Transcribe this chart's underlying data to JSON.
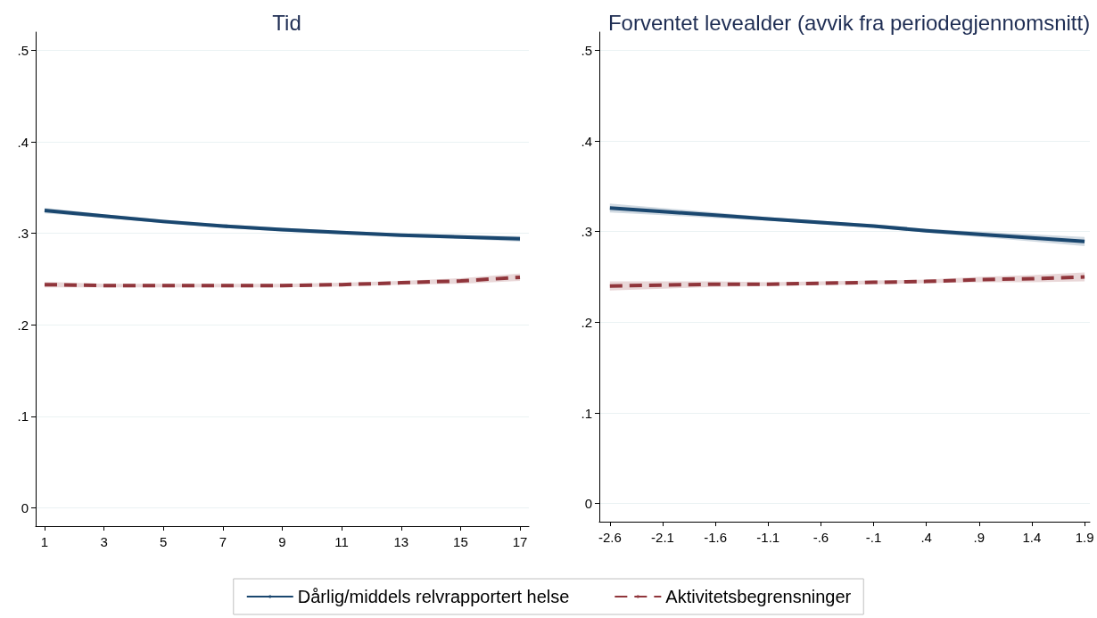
{
  "chart_data": [
    {
      "type": "line",
      "title": "Tid",
      "x": [
        1,
        3,
        5,
        7,
        9,
        11,
        13,
        15,
        17
      ],
      "xlim": [
        0.7,
        17.3
      ],
      "xticks": [
        1,
        3,
        5,
        7,
        9,
        11,
        13,
        15,
        17
      ],
      "ylim": [
        -0.02,
        0.52
      ],
      "yticks": [
        {
          "value": 0,
          "label": "0"
        },
        {
          "value": 0.1,
          "label": ".1"
        },
        {
          "value": 0.2,
          "label": ".2"
        },
        {
          "value": 0.3,
          "label": ".3"
        },
        {
          "value": 0.4,
          "label": ".4"
        },
        {
          "value": 0.5,
          "label": ".5"
        }
      ],
      "grid": "y",
      "legend": "bottom",
      "marker": "none",
      "series": [
        {
          "name": "Dårlig/middels relvrapportert helse",
          "color": "#1a476f",
          "line_style": "solid",
          "values": [
            0.325,
            0.319,
            0.313,
            0.308,
            0.304,
            0.301,
            0.298,
            0.296,
            0.294
          ],
          "lower": [
            0.322,
            0.317,
            0.311,
            0.306,
            0.302,
            0.299,
            0.296,
            0.294,
            0.291
          ],
          "upper": [
            0.328,
            0.321,
            0.315,
            0.31,
            0.306,
            0.303,
            0.3,
            0.298,
            0.297
          ]
        },
        {
          "name": "Aktivitetsbegrensninger",
          "color": "#90353b",
          "line_style": "dashed",
          "values": [
            0.244,
            0.243,
            0.243,
            0.243,
            0.243,
            0.244,
            0.246,
            0.248,
            0.252
          ],
          "lower": [
            0.241,
            0.241,
            0.241,
            0.241,
            0.241,
            0.242,
            0.244,
            0.245,
            0.248
          ],
          "upper": [
            0.247,
            0.245,
            0.245,
            0.245,
            0.245,
            0.246,
            0.248,
            0.251,
            0.256
          ]
        }
      ]
    },
    {
      "type": "line",
      "title": "Forventet levealder (avvik fra periodegjennomsnitt)",
      "x": [
        -2.6,
        -2.1,
        -1.6,
        -1.1,
        -0.6,
        -0.1,
        0.4,
        0.9,
        1.4,
        1.9
      ],
      "xlim": [
        -2.7,
        1.95
      ],
      "xticks": [
        {
          "value": -2.6,
          "label": "-2.6"
        },
        {
          "value": -2.1,
          "label": "-2.1"
        },
        {
          "value": -1.6,
          "label": "-1.6"
        },
        {
          "value": -1.1,
          "label": "-1.1"
        },
        {
          "value": -0.6,
          "label": "-.6"
        },
        {
          "value": -0.1,
          "label": "-.1"
        },
        {
          "value": 0.4,
          "label": ".4"
        },
        {
          "value": 0.9,
          "label": ".9"
        },
        {
          "value": 1.4,
          "label": "1.4"
        },
        {
          "value": 1.9,
          "label": "1.9"
        }
      ],
      "ylim": [
        -0.02,
        0.52
      ],
      "yticks": [
        {
          "value": 0,
          "label": "0"
        },
        {
          "value": 0.1,
          "label": ".1"
        },
        {
          "value": 0.2,
          "label": ".2"
        },
        {
          "value": 0.3,
          "label": ".3"
        },
        {
          "value": 0.4,
          "label": ".4"
        },
        {
          "value": 0.5,
          "label": ".5"
        }
      ],
      "grid": "y",
      "marker": "none",
      "series": [
        {
          "color": "#1a476f",
          "line_style": "solid",
          "values": [
            0.326,
            0.322,
            0.318,
            0.314,
            0.31,
            0.306,
            0.301,
            0.297,
            0.293,
            0.289
          ],
          "lower": [
            0.321,
            0.318,
            0.315,
            0.312,
            0.308,
            0.304,
            0.299,
            0.294,
            0.289,
            0.284
          ],
          "upper": [
            0.331,
            0.326,
            0.321,
            0.316,
            0.312,
            0.308,
            0.303,
            0.3,
            0.297,
            0.294
          ]
        },
        {
          "color": "#90353b",
          "line_style": "dashed",
          "values": [
            0.24,
            0.241,
            0.242,
            0.242,
            0.243,
            0.244,
            0.245,
            0.247,
            0.248,
            0.25
          ],
          "lower": [
            0.235,
            0.237,
            0.239,
            0.24,
            0.241,
            0.242,
            0.243,
            0.244,
            0.244,
            0.245
          ],
          "upper": [
            0.245,
            0.245,
            0.245,
            0.244,
            0.245,
            0.246,
            0.247,
            0.25,
            0.252,
            0.255
          ]
        }
      ]
    }
  ]
}
